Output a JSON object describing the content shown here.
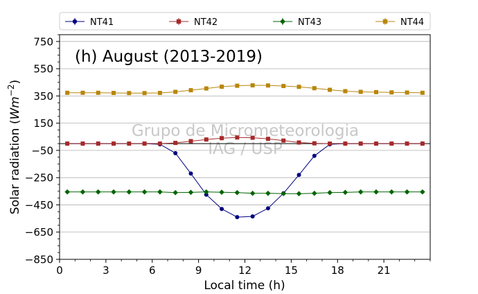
{
  "chart_data": {
    "type": "line",
    "title": "(h) August (2013-2019)",
    "xlabel": "Local time (h)",
    "ylabel_text": "Solar radiation (",
    "ylabel_unit_base": "Wm",
    "ylabel_unit_exp": "−2",
    "ylabel_close": ")",
    "watermark_line1": "Grupo de Micrometeorologia",
    "watermark_line2": "IAG / USP",
    "xlim": [
      0,
      24
    ],
    "ylim": [
      -850,
      800
    ],
    "x_ticks": [
      0,
      3,
      6,
      9,
      12,
      15,
      18,
      21
    ],
    "y_ticks": [
      -850,
      -650,
      -450,
      -250,
      -50,
      150,
      350,
      550,
      750
    ],
    "y_tick_labels": [
      "−850",
      "−650",
      "−450",
      "−250",
      "−50",
      "150",
      "350",
      "550",
      "750"
    ],
    "grid": "horizontal",
    "zero_line": 0,
    "legend_position": "top, outside plot (single row)",
    "x": [
      0.5,
      1.5,
      2.5,
      3.5,
      4.5,
      5.5,
      6.5,
      7.5,
      8.5,
      9.5,
      10.5,
      11.5,
      12.5,
      13.5,
      14.5,
      15.5,
      16.5,
      17.5,
      18.5,
      19.5,
      20.5,
      21.5,
      22.5,
      23.5
    ],
    "series": [
      {
        "name": "NT41",
        "color": "#00007f",
        "marker": "circle",
        "values": [
          0,
          0,
          0,
          0,
          0,
          0,
          -5,
          -70,
          -220,
          -375,
          -480,
          -540,
          -535,
          -475,
          -365,
          -230,
          -90,
          -5,
          0,
          0,
          0,
          0,
          0,
          0
        ]
      },
      {
        "name": "NT42",
        "color": "#a52a2a",
        "marker": "square",
        "values": [
          0,
          0,
          0,
          0,
          0,
          0,
          0,
          5,
          18,
          30,
          40,
          45,
          43,
          35,
          22,
          8,
          2,
          0,
          0,
          0,
          0,
          0,
          0,
          0
        ]
      },
      {
        "name": "NT43",
        "color": "#006400",
        "marker": "diamond",
        "values": [
          -355,
          -355,
          -355,
          -355,
          -355,
          -355,
          -355,
          -360,
          -358,
          -355,
          -357,
          -360,
          -365,
          -365,
          -367,
          -368,
          -365,
          -360,
          -358,
          -355,
          -355,
          -355,
          -355,
          -355
        ]
      },
      {
        "name": "NT44",
        "color": "#b8860b",
        "marker": "square",
        "values": [
          373,
          373,
          373,
          372,
          371,
          371,
          372,
          380,
          392,
          405,
          418,
          425,
          428,
          427,
          423,
          417,
          407,
          395,
          385,
          380,
          378,
          376,
          375,
          373
        ]
      }
    ]
  }
}
